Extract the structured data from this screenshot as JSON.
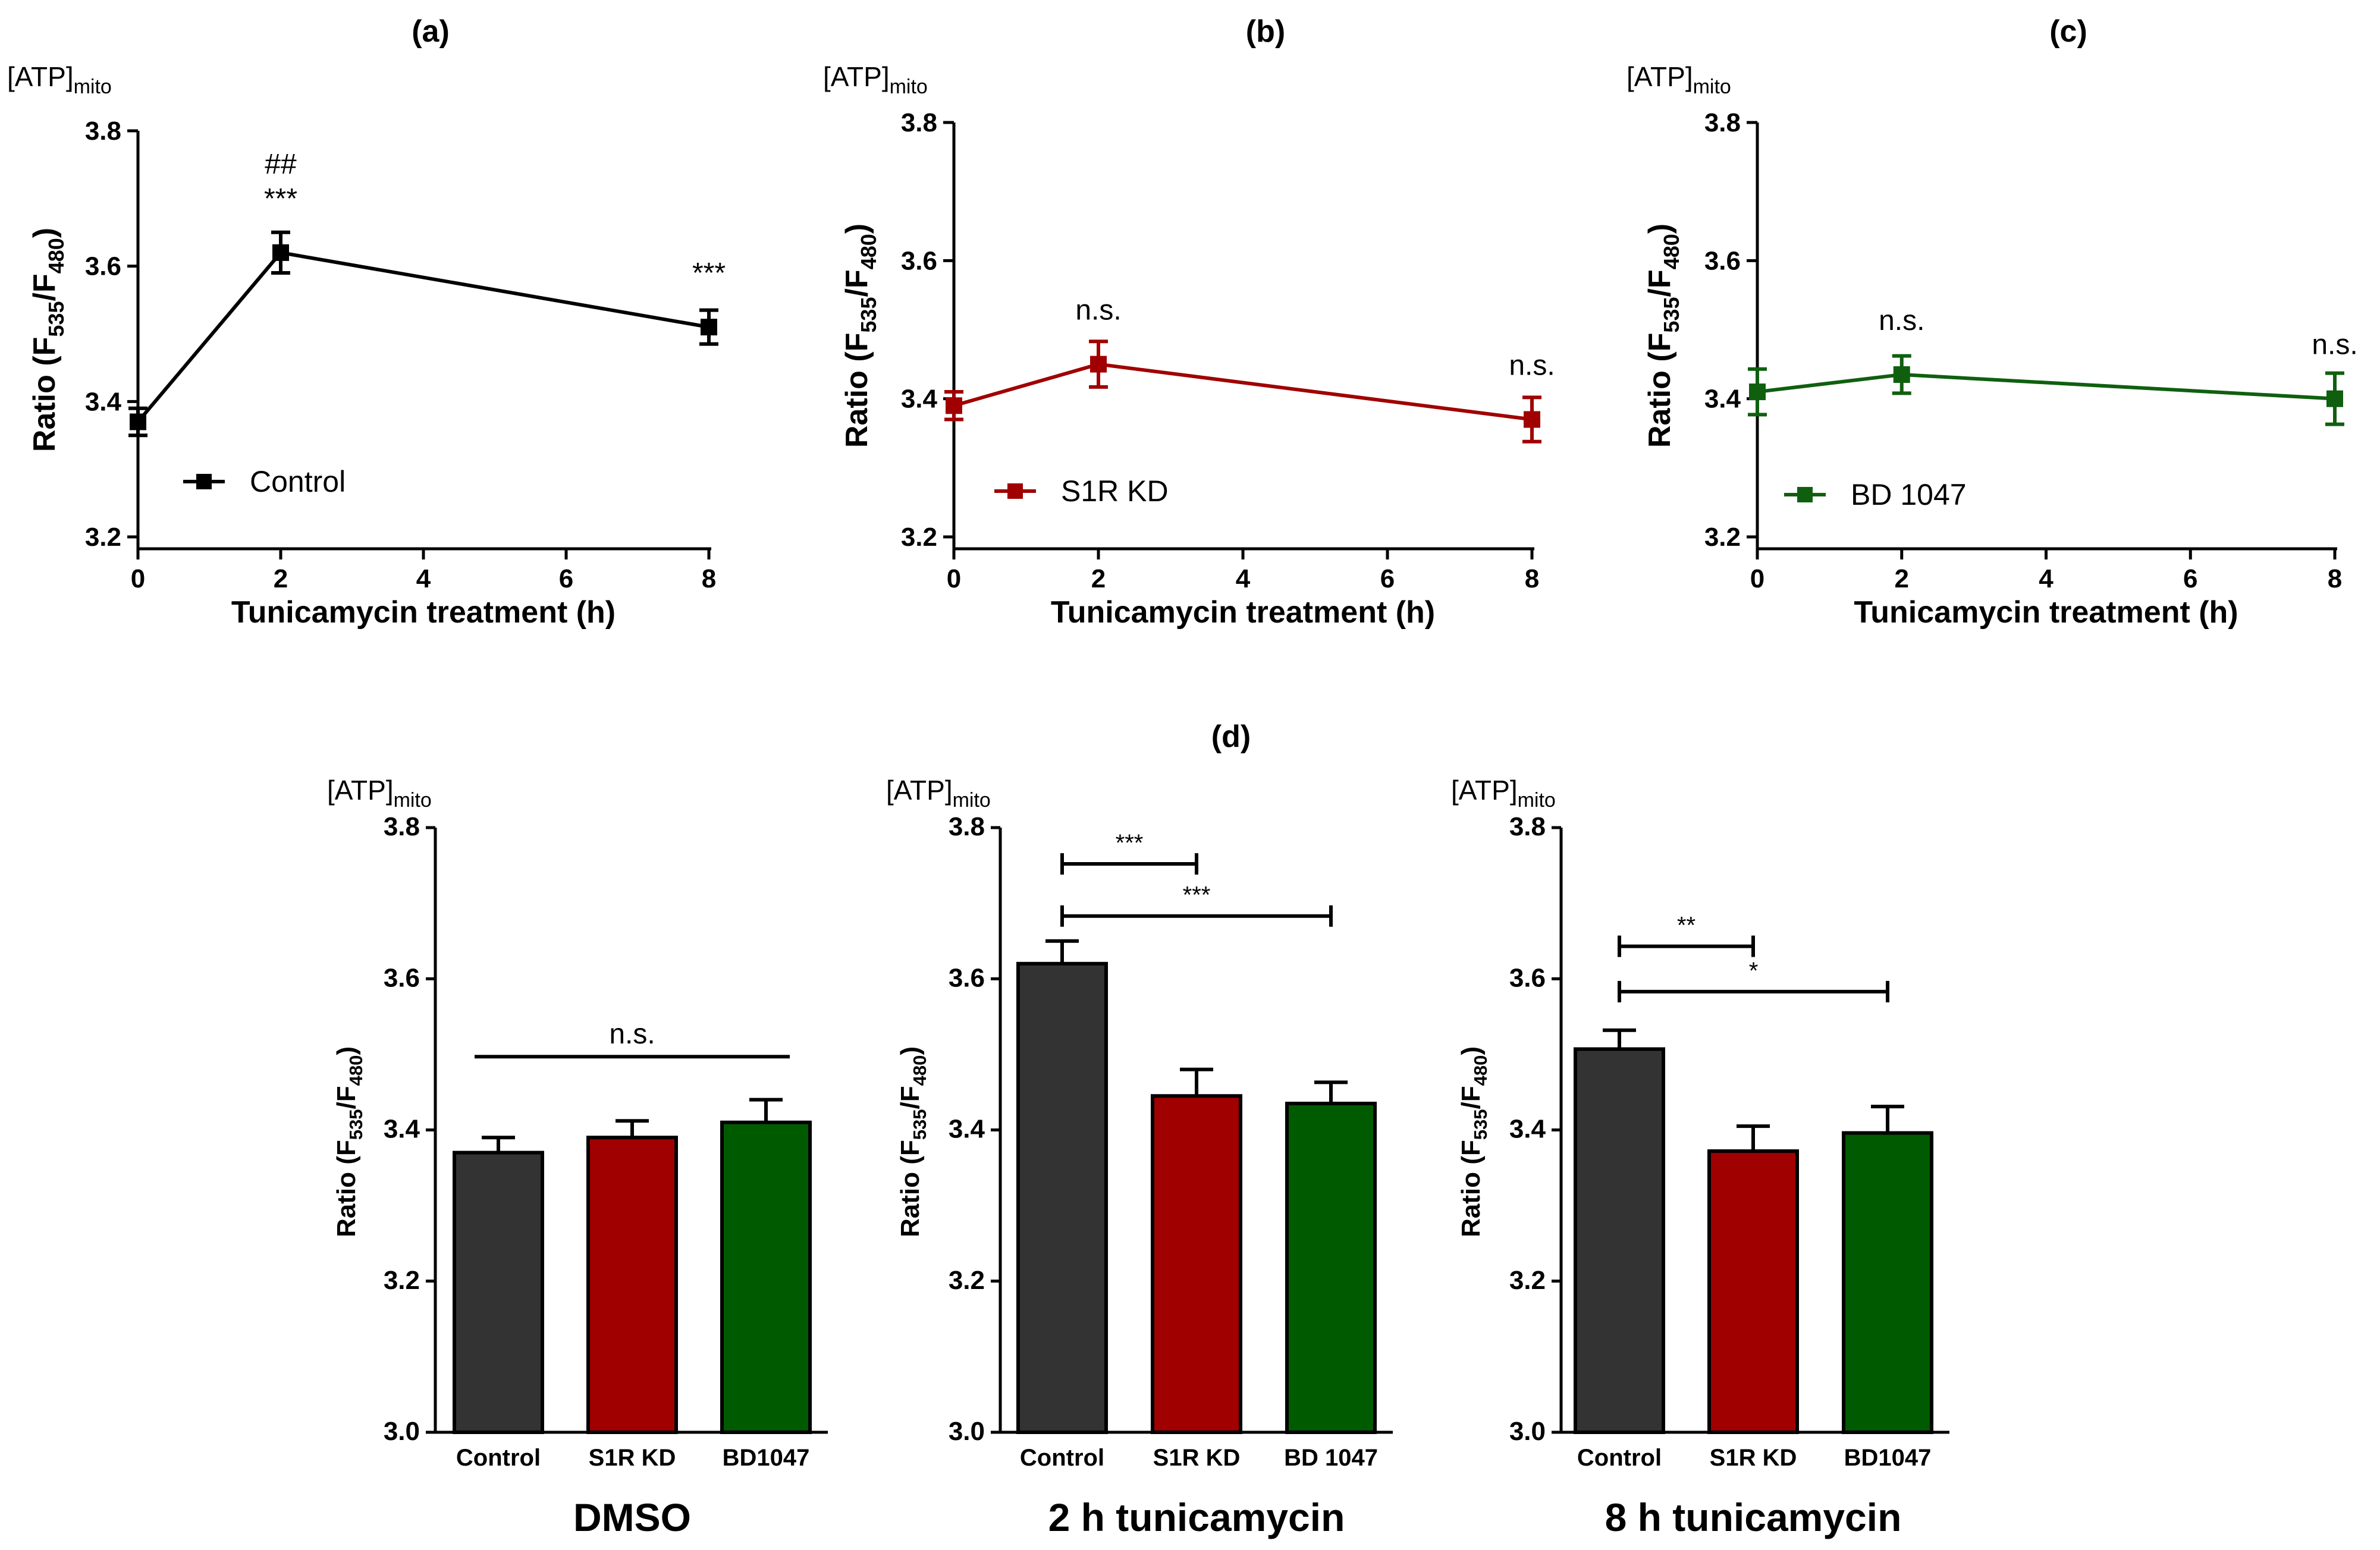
{
  "colors": {
    "control": "#333333",
    "s1r_kd": "#a00000",
    "bd1047": "#005a00",
    "text": "#000000",
    "line_control": "#000000",
    "line_s1r": "#a00000",
    "line_bd": "#0f5f0f"
  },
  "units_label": {
    "base": "[ATP]",
    "sub": "mito"
  },
  "ratio_label": {
    "prefix": "Ratio (F",
    "sub1": "535",
    "slash": "/F",
    "sub2": "480",
    "suffix": ")"
  },
  "chart_data": [
    {
      "id": "a",
      "type": "line",
      "panel_label": "(a)",
      "xlabel": "Tunicamycin treatment (h)",
      "xlim": [
        0,
        8
      ],
      "ylim": [
        3.2,
        3.8
      ],
      "xticks": [
        0,
        2,
        4,
        6,
        8
      ],
      "yticks": [
        "3.2",
        "3.4",
        "3.6",
        "3.8"
      ],
      "series": [
        {
          "name": "Control",
          "color": "line_control",
          "x": [
            0,
            2,
            8
          ],
          "y": [
            3.37,
            3.62,
            3.51
          ],
          "err": [
            0.02,
            0.03,
            0.025
          ]
        }
      ],
      "annotations": [
        {
          "x": 2,
          "y": 3.62,
          "lines": [
            "##",
            "***"
          ]
        },
        {
          "x": 8,
          "y": 3.51,
          "lines": [
            "***"
          ]
        }
      ],
      "legend": "Control"
    },
    {
      "id": "b",
      "type": "line",
      "panel_label": "(b)",
      "xlabel": "Tunicamycin treatment (h)",
      "xlim": [
        0,
        8
      ],
      "ylim": [
        3.2,
        3.8
      ],
      "xticks": [
        0,
        2,
        4,
        6,
        8
      ],
      "yticks": [
        "3.2",
        "3.4",
        "3.6",
        "3.8"
      ],
      "series": [
        {
          "name": "S1R KD",
          "color": "line_s1r",
          "x": [
            0,
            2,
            8
          ],
          "y": [
            3.39,
            3.45,
            3.37
          ],
          "err": [
            0.02,
            0.033,
            0.032
          ]
        }
      ],
      "annotations": [
        {
          "x": 2,
          "y": 3.45,
          "lines": [
            "n.s."
          ]
        },
        {
          "x": 8,
          "y": 3.37,
          "lines": [
            "n.s."
          ]
        }
      ],
      "legend": "S1R KD"
    },
    {
      "id": "c",
      "type": "line",
      "panel_label": "(c)",
      "xlabel": "Tunicamycin treatment (h)",
      "xlim": [
        0,
        8
      ],
      "ylim": [
        3.2,
        3.8
      ],
      "xticks": [
        0,
        2,
        4,
        6,
        8
      ],
      "yticks": [
        "3.2",
        "3.4",
        "3.6",
        "3.8"
      ],
      "series": [
        {
          "name": "BD 1047",
          "color": "line_bd",
          "x": [
            0,
            2,
            8
          ],
          "y": [
            3.41,
            3.435,
            3.4
          ],
          "err": [
            0.033,
            0.027,
            0.037
          ]
        }
      ],
      "annotations": [
        {
          "x": 2,
          "y": 3.435,
          "lines": [
            "n.s."
          ]
        },
        {
          "x": 8,
          "y": 3.4,
          "lines": [
            "n.s."
          ]
        }
      ],
      "legend": "BD 1047"
    },
    {
      "id": "d1",
      "type": "bar",
      "title": "DMSO",
      "categories": [
        "Control",
        "S1R KD",
        "BD1047"
      ],
      "values": [
        3.37,
        3.39,
        3.41
      ],
      "err": [
        0.02,
        0.022,
        0.03
      ],
      "colors": [
        "control",
        "s1r_kd",
        "bd1047"
      ],
      "ylim": [
        3.0,
        3.8
      ],
      "yticks": [
        "3.0",
        "3.2",
        "3.4",
        "3.6",
        "3.8"
      ],
      "comparisons": [
        {
          "from": 0,
          "to": 2,
          "y": 3.497,
          "label": "n.s.",
          "caps": false
        }
      ]
    },
    {
      "id": "d2",
      "type": "bar",
      "title": "2 h tunicamycin",
      "categories": [
        "Control",
        "S1R KD",
        "BD 1047"
      ],
      "values": [
        3.62,
        3.445,
        3.435
      ],
      "err": [
        0.03,
        0.035,
        0.028
      ],
      "colors": [
        "control",
        "s1r_kd",
        "bd1047"
      ],
      "ylim": [
        3.0,
        3.8
      ],
      "yticks": [
        "3.0",
        "3.2",
        "3.4",
        "3.6",
        "3.8"
      ],
      "comparisons": [
        {
          "from": 0,
          "to": 1,
          "y": 3.752,
          "label": "***",
          "caps": true
        },
        {
          "from": 0,
          "to": 2,
          "y": 3.683,
          "label": "***",
          "caps": true
        }
      ]
    },
    {
      "id": "d3",
      "type": "bar",
      "title": "8 h tunicamycin",
      "categories": [
        "Control",
        "S1R KD",
        "BD1047"
      ],
      "values": [
        3.507,
        3.372,
        3.396
      ],
      "err": [
        0.025,
        0.033,
        0.035
      ],
      "colors": [
        "control",
        "s1r_kd",
        "bd1047"
      ],
      "ylim": [
        3.0,
        3.8
      ],
      "yticks": [
        "3.0",
        "3.2",
        "3.4",
        "3.6",
        "3.8"
      ],
      "comparisons": [
        {
          "from": 0,
          "to": 1,
          "y": 3.643,
          "label": "**",
          "caps": true
        },
        {
          "from": 0,
          "to": 2,
          "y": 3.583,
          "label": "*",
          "caps": true
        }
      ]
    }
  ],
  "panel_d_label": "(d)"
}
